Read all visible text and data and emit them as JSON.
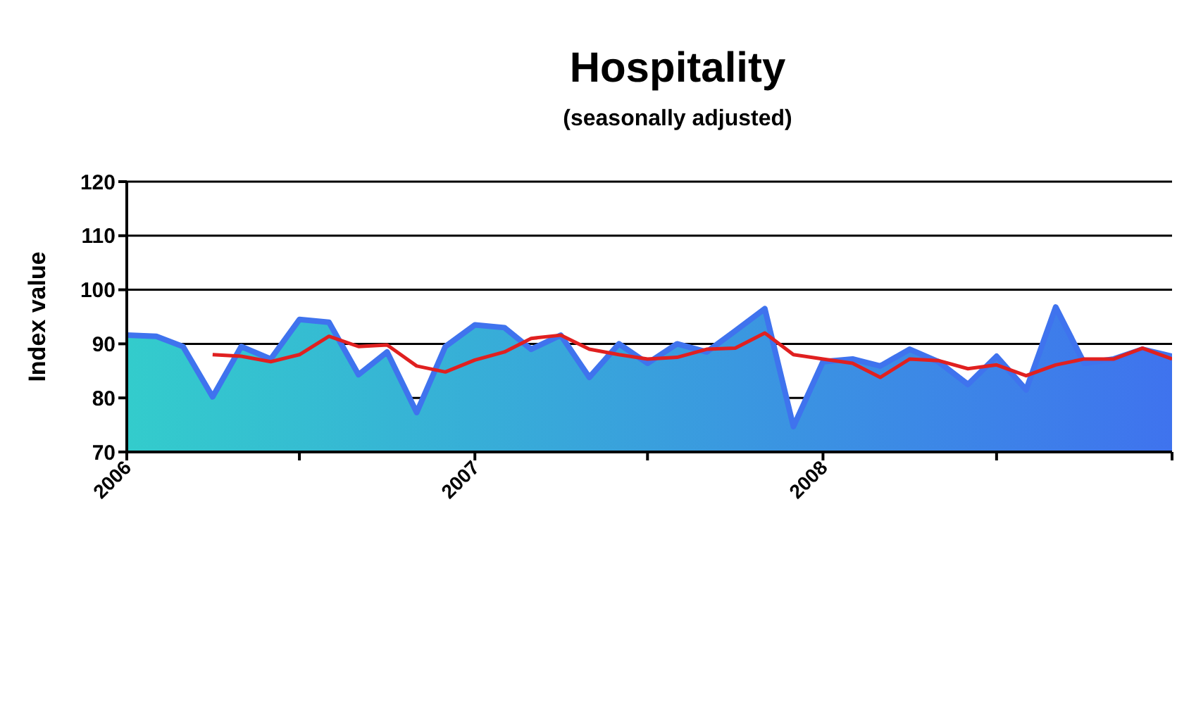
{
  "chart_data": {
    "type": "area",
    "title": "Hospitality",
    "subtitle": "(seasonally adjusted)",
    "ylabel": "Index value",
    "x": [
      "2006-01",
      "2006-02",
      "2006-03",
      "2006-04",
      "2006-05",
      "2006-06",
      "2006-07",
      "2006-08",
      "2006-09",
      "2006-10",
      "2006-11",
      "2006-12",
      "2007-01",
      "2007-02",
      "2007-03",
      "2007-04",
      "2007-05",
      "2007-06",
      "2007-07",
      "2007-08",
      "2007-09",
      "2007-10",
      "2007-11",
      "2007-12",
      "2008-01",
      "2008-02",
      "2008-03",
      "2008-04",
      "2008-05",
      "2008-06",
      "2008-07",
      "2008-08",
      "2008-09",
      "2008-10",
      "2008-11",
      "2008-12",
      "2009-01"
    ],
    "series": [
      {
        "color": "#3f73ee",
        "values": [
          91.6,
          91.4,
          89.5,
          80.2,
          89.5,
          87.2,
          94.5,
          94,
          84.3,
          88.5,
          77.3,
          89.5,
          93.5,
          93,
          89,
          91.6,
          83.8,
          90,
          86.4,
          90,
          88.5,
          92.4,
          96.5,
          74.7,
          86.7,
          87.2,
          85.9,
          89,
          86.7,
          82.5,
          87.7,
          81.5,
          96.8,
          86.4,
          87.2,
          89,
          87.7
        ]
      },
      {
        "type": "line",
        "color": "#e02020",
        "values": [
          null,
          null,
          null,
          88,
          87.7,
          86.7,
          88,
          91.4,
          89.5,
          89.8,
          85.9,
          84.8,
          87,
          88.5,
          91,
          91.6,
          89,
          88,
          87.2,
          87.5,
          89,
          89.2,
          92,
          88,
          87.2,
          86.4,
          83.8,
          87.2,
          86.9,
          85.4,
          86.1,
          84.1,
          86.1,
          87.2,
          87.2,
          89.2,
          87.2
        ]
      }
    ],
    "xlim": [
      "2006-01",
      "2009-01"
    ],
    "xticks": [
      {
        "value": "2006-01",
        "label": "2006"
      },
      {
        "value": "2006-07",
        "label": null
      },
      {
        "value": "2007-01",
        "label": "2007"
      },
      {
        "value": "2007-07",
        "label": null
      },
      {
        "value": "2008-01",
        "label": "2008"
      },
      {
        "value": "2008-07",
        "label": null
      },
      {
        "value": "2009-01",
        "label": null
      }
    ],
    "ylim": [
      70,
      120
    ],
    "yticks": [
      70,
      80,
      90,
      100,
      110,
      120
    ],
    "grid": "y",
    "marker": "none",
    "line_style": "solid"
  }
}
